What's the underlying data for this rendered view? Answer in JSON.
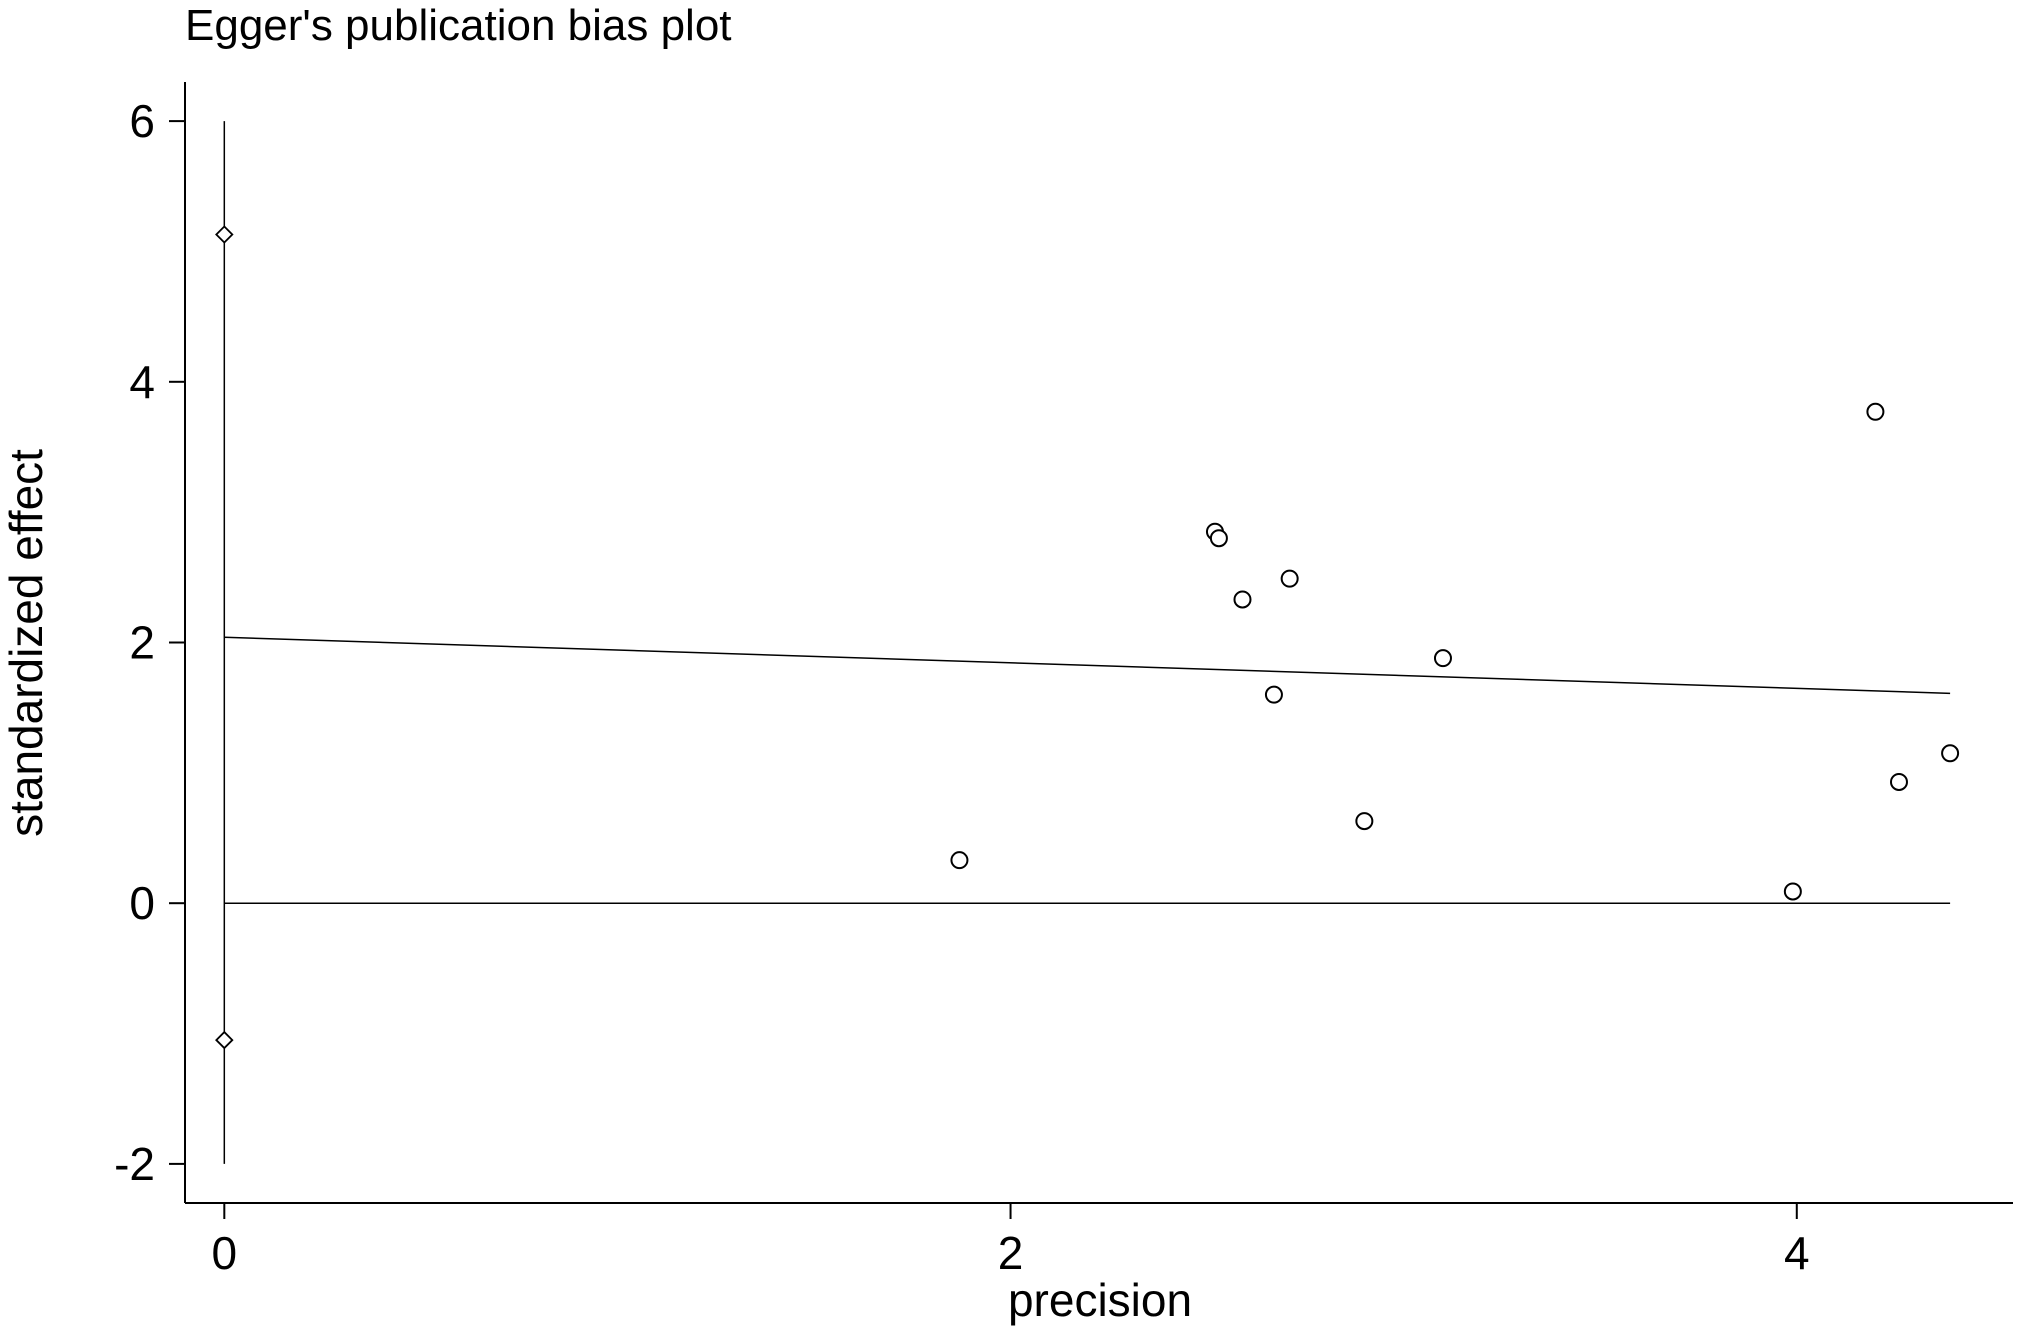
{
  "chart_data": {
    "type": "scatter",
    "title": "Egger's publication bias plot",
    "xlabel": "precision",
    "ylabel": "standardized effect",
    "xlim": [
      -0.1,
      4.55
    ],
    "ylim": [
      -2.3,
      6.3
    ],
    "xticks": [
      0,
      2,
      4
    ],
    "xtick_labels": [
      "0",
      "2",
      "4"
    ],
    "yticks": [
      -2,
      0,
      2,
      4,
      6
    ],
    "ytick_labels": [
      "-2",
      "0",
      "2",
      "4",
      "6"
    ],
    "grid": false,
    "points": {
      "x": [
        1.87,
        2.52,
        2.53,
        2.59,
        2.67,
        2.71,
        2.9,
        3.1,
        3.99,
        4.2,
        4.26,
        4.39
      ],
      "y": [
        0.33,
        2.85,
        2.8,
        2.33,
        1.6,
        2.49,
        0.63,
        1.88,
        0.09,
        3.77,
        0.93,
        1.15
      ]
    },
    "regression_line": {
      "x": [
        0,
        4.39
      ],
      "y": [
        2.04,
        1.61
      ]
    },
    "zero_line": {
      "x": [
        0,
        4.39
      ],
      "y": [
        0,
        0
      ]
    },
    "intercept_ci": {
      "x": 0,
      "lower": -1.05,
      "upper": 5.13,
      "whisker_range": [
        -2,
        6
      ]
    }
  }
}
